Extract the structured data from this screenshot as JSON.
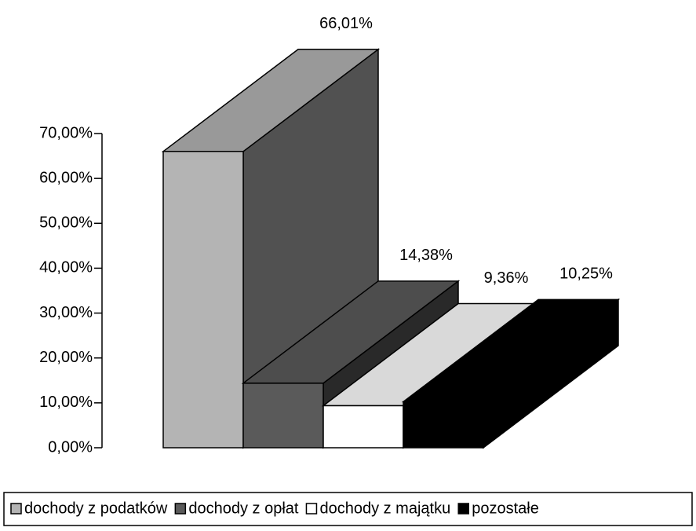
{
  "chart_data": {
    "type": "bar3d",
    "series": [
      {
        "name": "dochody z podatków",
        "color": "#b4b4b4",
        "values": [
          66.01
        ],
        "value_labels": [
          "66,01%"
        ]
      },
      {
        "name": "dochody z opłat",
        "color": "#5a5a5a",
        "values": [
          14.38
        ],
        "value_labels": [
          "14,38%"
        ]
      },
      {
        "name": "dochody z majątku",
        "color": "#ffffff",
        "values": [
          9.36
        ],
        "value_labels": [
          "9,36%"
        ]
      },
      {
        "name": "pozostałe",
        "color": "#000000",
        "values": [
          10.25
        ],
        "value_labels": [
          "10,25%"
        ]
      }
    ],
    "ylim": [
      0,
      70
    ],
    "yticks": [
      {
        "value": 0,
        "label": "0,00%"
      },
      {
        "value": 10,
        "label": "10,00%"
      },
      {
        "value": 20,
        "label": "20,00%"
      },
      {
        "value": 30,
        "label": "30,00%"
      },
      {
        "value": 40,
        "label": "40,00%"
      },
      {
        "value": 50,
        "label": "50,00%"
      },
      {
        "value": 60,
        "label": "60,00%"
      },
      {
        "value": 70,
        "label": "70,00%"
      }
    ],
    "legend": "bottom"
  }
}
